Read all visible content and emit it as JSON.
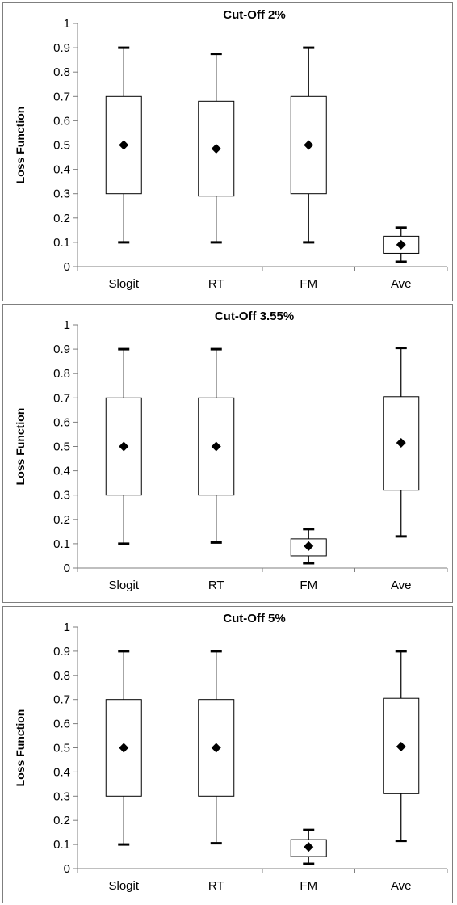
{
  "chart_data": [
    {
      "type": "box",
      "title": "Cut-Off 2%",
      "xlabel": "",
      "ylabel": "Loss Function",
      "ylim": [
        0,
        1
      ],
      "yticks": [
        "0",
        "0.1",
        "0.2",
        "0.3",
        "0.4",
        "0.5",
        "0.6",
        "0.7",
        "0.8",
        "0.9",
        "1"
      ],
      "categories": [
        "Slogit",
        "RT",
        "FM",
        "Ave"
      ],
      "series": [
        {
          "min": 0.1,
          "q1": 0.3,
          "mean": 0.5,
          "q3": 0.7,
          "max": 0.9
        },
        {
          "min": 0.1,
          "q1": 0.29,
          "mean": 0.485,
          "q3": 0.68,
          "max": 0.875
        },
        {
          "min": 0.1,
          "q1": 0.3,
          "mean": 0.5,
          "q3": 0.7,
          "max": 0.9
        },
        {
          "min": 0.02,
          "q1": 0.055,
          "mean": 0.09,
          "q3": 0.125,
          "max": 0.16
        }
      ]
    },
    {
      "type": "box",
      "title": "Cut-Off 3.55%",
      "xlabel": "",
      "ylabel": "Loss Function",
      "ylim": [
        0,
        1
      ],
      "yticks": [
        "0",
        "0.1",
        "0.2",
        "0.3",
        "0.4",
        "0.5",
        "0.6",
        "0.7",
        "0.8",
        "0.9",
        "1"
      ],
      "categories": [
        "Slogit",
        "RT",
        "FM",
        "Ave"
      ],
      "series": [
        {
          "min": 0.1,
          "q1": 0.3,
          "mean": 0.5,
          "q3": 0.7,
          "max": 0.9
        },
        {
          "min": 0.105,
          "q1": 0.3,
          "mean": 0.5,
          "q3": 0.7,
          "max": 0.9
        },
        {
          "min": 0.02,
          "q1": 0.05,
          "mean": 0.09,
          "q3": 0.12,
          "max": 0.16
        },
        {
          "min": 0.13,
          "q1": 0.32,
          "mean": 0.515,
          "q3": 0.705,
          "max": 0.905
        }
      ]
    },
    {
      "type": "box",
      "title": "Cut-Off 5%",
      "xlabel": "",
      "ylabel": "Loss Function",
      "ylim": [
        0,
        1
      ],
      "yticks": [
        "0",
        "0.1",
        "0.2",
        "0.3",
        "0.4",
        "0.5",
        "0.6",
        "0.7",
        "0.8",
        "0.9",
        "1"
      ],
      "categories": [
        "Slogit",
        "RT",
        "FM",
        "Ave"
      ],
      "series": [
        {
          "min": 0.1,
          "q1": 0.3,
          "mean": 0.5,
          "q3": 0.7,
          "max": 0.9
        },
        {
          "min": 0.105,
          "q1": 0.3,
          "mean": 0.5,
          "q3": 0.7,
          "max": 0.9
        },
        {
          "min": 0.02,
          "q1": 0.05,
          "mean": 0.09,
          "q3": 0.12,
          "max": 0.16
        },
        {
          "min": 0.115,
          "q1": 0.31,
          "mean": 0.505,
          "q3": 0.705,
          "max": 0.9
        }
      ]
    }
  ],
  "colors": {
    "box_fill": "#ffffff",
    "stroke": "#000000",
    "axis": "#7f7f7f",
    "frame": "#7f7f7f"
  }
}
